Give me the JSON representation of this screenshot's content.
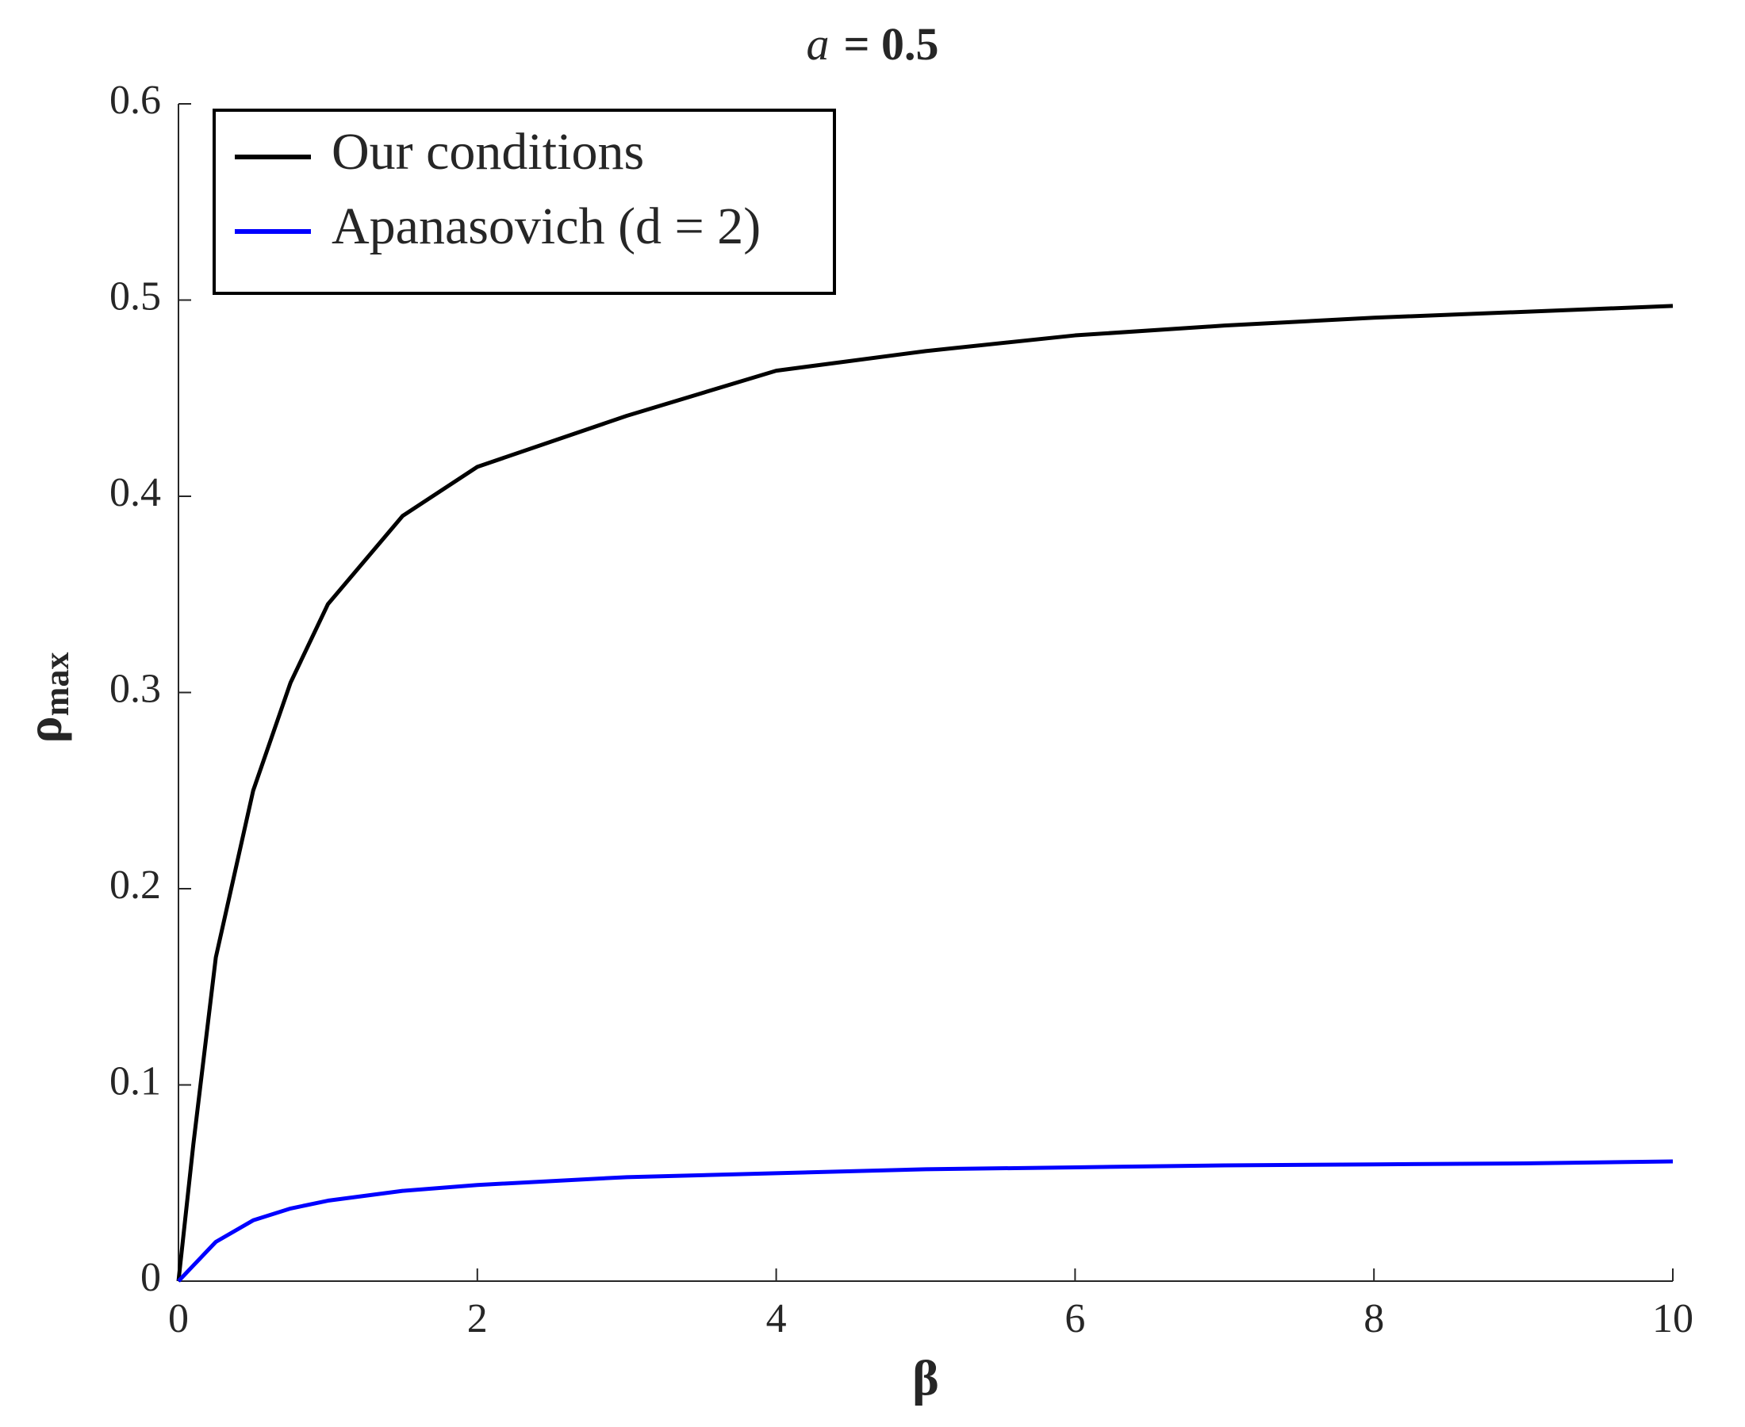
{
  "chart_data": {
    "type": "line",
    "title": [
      "a",
      "= 0.5"
    ],
    "x_label": "β",
    "y_label": [
      "ρ",
      "max"
    ],
    "x": [
      0,
      0.1,
      0.25,
      0.5,
      0.75,
      1,
      1.5,
      2,
      3,
      4,
      5,
      6,
      7,
      8,
      9,
      10
    ],
    "series": [
      {
        "name": "Our conditions",
        "color": "#000000",
        "values": [
          0,
          0.07,
          0.165,
          0.25,
          0.305,
          0.345,
          0.39,
          0.415,
          0.441,
          0.464,
          0.474,
          0.482,
          0.487,
          0.491,
          0.494,
          0.497
        ]
      },
      {
        "name": "Apanasovich (d = 2)",
        "color": "#0000ff",
        "values": [
          0,
          0.008,
          0.02,
          0.031,
          0.037,
          0.041,
          0.046,
          0.049,
          0.053,
          0.055,
          0.057,
          0.058,
          0.059,
          0.0595,
          0.06,
          0.061
        ]
      }
    ],
    "xlim": [
      0,
      10
    ],
    "xticks": [
      0,
      2,
      4,
      6,
      8,
      10
    ],
    "ylim": [
      0,
      0.6
    ],
    "yticks": [
      0,
      0.1,
      0.2,
      0.3,
      0.4,
      0.5,
      0.6
    ],
    "grid": false,
    "legend": "upper left"
  }
}
